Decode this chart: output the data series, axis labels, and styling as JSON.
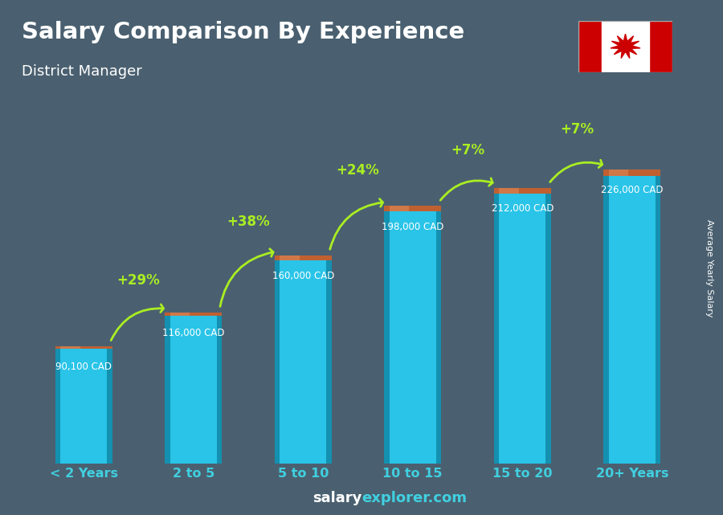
{
  "title": "Salary Comparison By Experience",
  "subtitle": "District Manager",
  "categories": [
    "< 2 Years",
    "2 to 5",
    "5 to 10",
    "10 to 15",
    "15 to 20",
    "20+ Years"
  ],
  "values": [
    90100,
    116000,
    160000,
    198000,
    212000,
    226000
  ],
  "value_labels": [
    "90,100 CAD",
    "116,000 CAD",
    "160,000 CAD",
    "198,000 CAD",
    "212,000 CAD",
    "226,000 CAD"
  ],
  "pct_changes": [
    "+29%",
    "+38%",
    "+24%",
    "+7%",
    "+7%"
  ],
  "bar_color_main": "#29c4e8",
  "bar_color_dark": "#1490b0",
  "bar_color_top": "#c06030",
  "bar_color_top_light": "#d07848",
  "bg_color": "#4a6070",
  "title_color": "#ffffff",
  "subtitle_color": "#ffffff",
  "tick_color": "#40d0e0",
  "pct_color": "#aaee22",
  "value_label_color": "#ffffff",
  "ylabel": "Average Yearly Salary",
  "footer_salary": "salary",
  "footer_explorer": "explorer.com",
  "footer_color_salary": "#ffffff",
  "footer_color_explorer": "#40d0e0",
  "ylim": [
    0,
    285000
  ],
  "bar_width": 0.52
}
